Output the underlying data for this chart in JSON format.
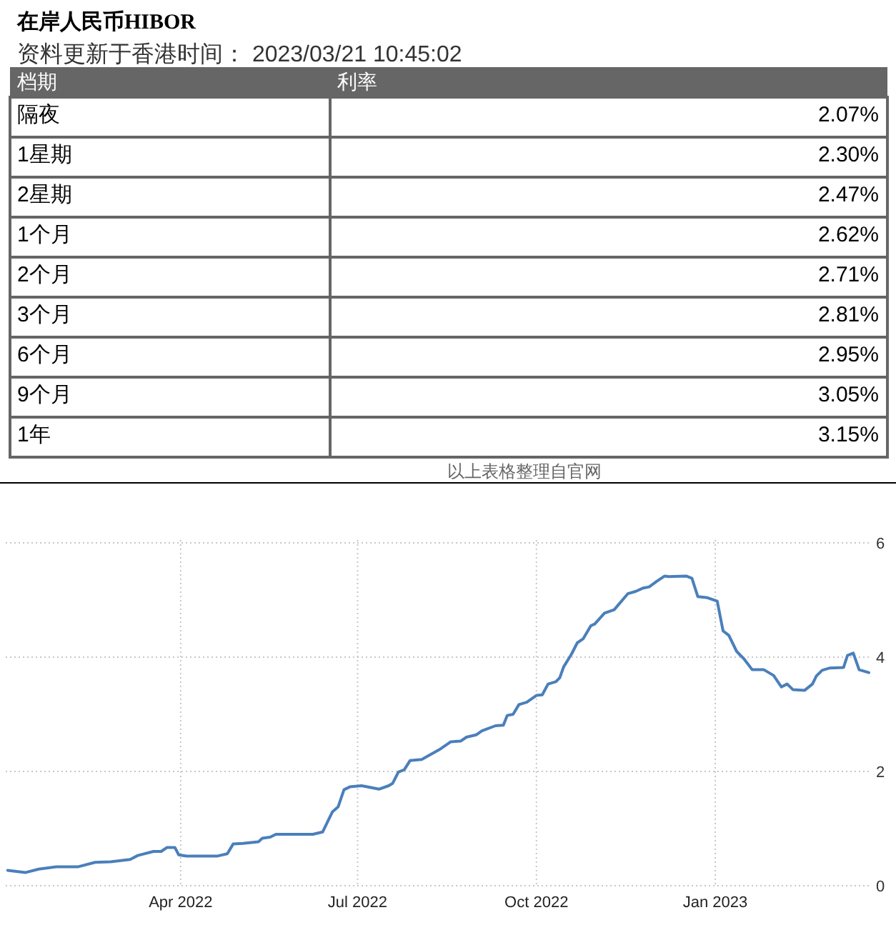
{
  "chart_data": [
    {
      "type": "other",
      "title": "在岸人民币HIBOR",
      "subtitle": "资料更新于香港时间： 2023/03/21 10:45:02",
      "xlabel": "档期",
      "ylabel": "利率",
      "categories": [
        "隔夜",
        "1星期",
        "2星期",
        "1个月",
        "2个月",
        "3个月",
        "6个月",
        "9个月",
        "1年"
      ],
      "values": [
        2.07,
        2.3,
        2.47,
        2.62,
        2.71,
        2.81,
        2.95,
        3.05,
        3.15
      ],
      "value_labels": [
        "2.07%",
        "2.30%",
        "2.47%",
        "2.62%",
        "2.71%",
        "2.81%",
        "2.95%",
        "3.05%",
        "3.15%"
      ],
      "annotations": [
        "以上表格整理自官网"
      ]
    },
    {
      "type": "line",
      "grid": true,
      "line_style": "solid",
      "x": [
        "2022-01-02",
        "2022-01-11",
        "2022-01-18",
        "2022-01-27",
        "2022-02-07",
        "2022-02-16",
        "2022-02-24",
        "2022-03-06",
        "2022-03-10",
        "2022-03-18",
        "2022-03-22",
        "2022-03-25",
        "2022-03-29",
        "2022-03-31",
        "2022-04-04",
        "2022-04-20",
        "2022-04-25",
        "2022-04-28",
        "2022-05-03",
        "2022-05-11",
        "2022-05-13",
        "2022-05-17",
        "2022-05-20",
        "2022-06-08",
        "2022-06-13",
        "2022-06-18",
        "2022-06-21",
        "2022-06-24",
        "2022-06-27",
        "2022-07-03",
        "2022-07-12",
        "2022-07-17",
        "2022-07-19",
        "2022-07-22",
        "2022-07-25",
        "2022-07-28",
        "2022-08-03",
        "2022-08-12",
        "2022-08-18",
        "2022-08-23",
        "2022-08-26",
        "2022-08-31",
        "2022-09-03",
        "2022-09-10",
        "2022-09-14",
        "2022-09-16",
        "2022-09-19",
        "2022-09-22",
        "2022-09-26",
        "2022-10-01",
        "2022-10-04",
        "2022-10-07",
        "2022-10-11",
        "2022-10-13",
        "2022-10-15",
        "2022-10-19",
        "2022-10-22",
        "2022-10-25",
        "2022-10-29",
        "2022-10-31",
        "2022-11-05",
        "2022-11-10",
        "2022-11-17",
        "2022-11-21",
        "2022-11-25",
        "2022-11-28",
        "2022-12-02",
        "2022-12-06",
        "2022-12-08",
        "2022-12-17",
        "2022-12-20",
        "2022-12-23",
        "2022-12-28",
        "2023-01-02",
        "2023-01-05",
        "2023-01-08",
        "2023-01-12",
        "2023-01-16",
        "2023-01-20",
        "2023-01-26",
        "2023-01-31",
        "2023-02-04",
        "2023-02-07",
        "2023-02-10",
        "2023-02-16",
        "2023-02-20",
        "2023-02-22",
        "2023-02-25",
        "2023-03-01",
        "2023-03-08",
        "2023-03-10",
        "2023-03-13",
        "2023-03-16",
        "2023-03-21"
      ],
      "series": [
        {
          "color": "#4a7fbb",
          "values": [
            0.27,
            0.23,
            0.29,
            0.33,
            0.33,
            0.41,
            0.42,
            0.46,
            0.53,
            0.6,
            0.6,
            0.67,
            0.67,
            0.54,
            0.52,
            0.52,
            0.56,
            0.73,
            0.74,
            0.77,
            0.83,
            0.85,
            0.9,
            0.9,
            0.94,
            1.29,
            1.38,
            1.68,
            1.73,
            1.75,
            1.69,
            1.75,
            1.79,
            1.99,
            2.03,
            2.19,
            2.21,
            2.38,
            2.52,
            2.53,
            2.6,
            2.64,
            2.71,
            2.8,
            2.81,
            2.98,
            3.0,
            3.17,
            3.21,
            3.33,
            3.34,
            3.53,
            3.57,
            3.64,
            3.83,
            4.05,
            4.25,
            4.32,
            4.55,
            4.58,
            4.77,
            4.83,
            5.11,
            5.15,
            5.21,
            5.23,
            5.33,
            5.42,
            5.41,
            5.42,
            5.38,
            5.06,
            5.04,
            4.98,
            4.46,
            4.38,
            4.1,
            3.96,
            3.78,
            3.78,
            3.68,
            3.48,
            3.53,
            3.43,
            3.42,
            3.53,
            3.67,
            3.77,
            3.81,
            3.82,
            4.03,
            4.07,
            3.78,
            3.73
          ]
        }
      ],
      "xlim": [
        "2022-01-01",
        "2023-03-21"
      ],
      "xticks": [
        {
          "value": "2022-04-01",
          "label": "Apr 2022"
        },
        {
          "value": "2022-07-01",
          "label": "Jul 2022"
        },
        {
          "value": "2022-10-01",
          "label": "Oct 2022"
        },
        {
          "value": "2023-01-01",
          "label": "Jan 2023"
        }
      ],
      "ylim": [
        0,
        6
      ],
      "yticks": [
        0,
        2,
        4,
        6
      ]
    }
  ]
}
